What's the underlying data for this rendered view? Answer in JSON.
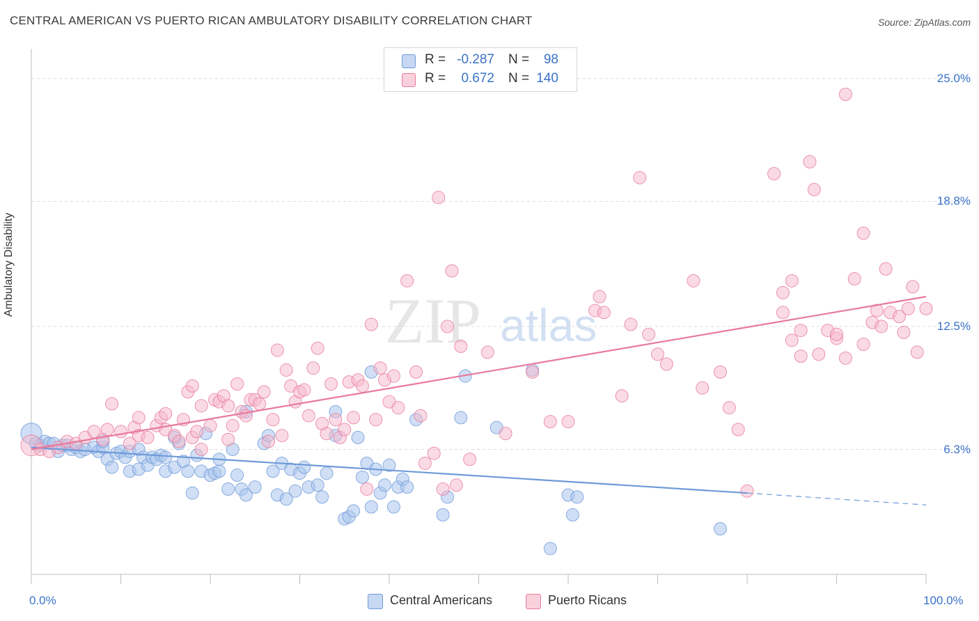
{
  "title": "CENTRAL AMERICAN VS PUERTO RICAN AMBULATORY DISABILITY CORRELATION CHART",
  "source": "Source: ZipAtlas.com",
  "watermark": {
    "zip": "ZIP",
    "atlas": "atlas"
  },
  "stats": [
    {
      "r_label": "R =",
      "r_value": "-0.287",
      "n_label": "N =",
      "n_value": "98",
      "color": "#a9c4ec"
    },
    {
      "r_label": "R =",
      "r_value": "0.672",
      "n_label": "N =",
      "n_value": "140",
      "color": "#f5b8cb"
    }
  ],
  "legend": [
    {
      "label": "Central Americans",
      "color": "#a9c4ec"
    },
    {
      "label": "Puerto Ricans",
      "color": "#f5b8cb"
    }
  ],
  "chart_data": {
    "type": "scatter",
    "title": "CENTRAL AMERICAN VS PUERTO RICAN AMBULATORY DISABILITY CORRELATION CHART",
    "xlabel": "",
    "ylabel": "Ambulatory Disability",
    "xlim": [
      0,
      100
    ],
    "ylim": [
      0,
      26.5
    ],
    "x_tick_labels": [
      "0.0%",
      "100.0%"
    ],
    "y_ticks": [
      {
        "value": 6.3,
        "label": "6.3%"
      },
      {
        "value": 12.5,
        "label": "12.5%"
      },
      {
        "value": 18.8,
        "label": "18.8%"
      },
      {
        "value": 25.0,
        "label": "25.0%"
      }
    ],
    "series": [
      {
        "name": "Central Americans",
        "color": "#6f9ad8",
        "fill": "#a9c4ec",
        "trend": {
          "x0": 0,
          "y0": 6.4,
          "x1": 80,
          "y1": 4.1,
          "dash_to_x": 100,
          "dash_to_y": 3.5
        },
        "points": [
          [
            0,
            7.1
          ],
          [
            0.5,
            6.6
          ],
          [
            1,
            6.5
          ],
          [
            1.5,
            6.7
          ],
          [
            2,
            6.6
          ],
          [
            2.5,
            6.6
          ],
          [
            3,
            6.2
          ],
          [
            3.5,
            6.5
          ],
          [
            4,
            6.5
          ],
          [
            4.5,
            6.3
          ],
          [
            5,
            6.4
          ],
          [
            5.5,
            6.2
          ],
          [
            6,
            6.3
          ],
          [
            7,
            6.4
          ],
          [
            7.5,
            6.2
          ],
          [
            8,
            6.4
          ],
          [
            8,
            6.7
          ],
          [
            8.5,
            5.8
          ],
          [
            9,
            5.4
          ],
          [
            9.5,
            6.1
          ],
          [
            10,
            6.2
          ],
          [
            10.5,
            5.9
          ],
          [
            11,
            6.2
          ],
          [
            11,
            5.2
          ],
          [
            12,
            6.3
          ],
          [
            12,
            5.3
          ],
          [
            12.5,
            5.9
          ],
          [
            13,
            5.5
          ],
          [
            13.5,
            5.9
          ],
          [
            14,
            5.8
          ],
          [
            14.5,
            6.0
          ],
          [
            15,
            5.2
          ],
          [
            15,
            5.9
          ],
          [
            16,
            5.4
          ],
          [
            16.5,
            6.6
          ],
          [
            16,
            6.9
          ],
          [
            17,
            5.7
          ],
          [
            17.5,
            5.2
          ],
          [
            18,
            4.1
          ],
          [
            18.5,
            6.0
          ],
          [
            19,
            5.2
          ],
          [
            19.5,
            7.1
          ],
          [
            20,
            5.0
          ],
          [
            20.5,
            5.1
          ],
          [
            21,
            5.2
          ],
          [
            21,
            5.8
          ],
          [
            22,
            4.3
          ],
          [
            22.5,
            6.3
          ],
          [
            23,
            5.0
          ],
          [
            23.5,
            4.3
          ],
          [
            24,
            4.0
          ],
          [
            24,
            8.2
          ],
          [
            25,
            4.4
          ],
          [
            26,
            6.6
          ],
          [
            26.5,
            7.0
          ],
          [
            27,
            5.2
          ],
          [
            27.5,
            4.0
          ],
          [
            28,
            5.6
          ],
          [
            28.5,
            3.8
          ],
          [
            29,
            5.3
          ],
          [
            29.5,
            4.2
          ],
          [
            30,
            5.1
          ],
          [
            30.5,
            5.4
          ],
          [
            31,
            4.4
          ],
          [
            32,
            4.5
          ],
          [
            32.5,
            3.9
          ],
          [
            33,
            5.1
          ],
          [
            34,
            8.2
          ],
          [
            34,
            7.0
          ],
          [
            35,
            2.8
          ],
          [
            35.5,
            2.9
          ],
          [
            36,
            3.2
          ],
          [
            36.5,
            6.9
          ],
          [
            37,
            4.9
          ],
          [
            37.5,
            5.6
          ],
          [
            38,
            3.4
          ],
          [
            38,
            10.2
          ],
          [
            38.5,
            5.3
          ],
          [
            39,
            4.1
          ],
          [
            39.5,
            4.5
          ],
          [
            40,
            5.5
          ],
          [
            40.5,
            3.4
          ],
          [
            41,
            4.4
          ],
          [
            41.5,
            4.8
          ],
          [
            42,
            4.4
          ],
          [
            43,
            7.8
          ],
          [
            46,
            3.0
          ],
          [
            46.5,
            3.9
          ],
          [
            48,
            7.9
          ],
          [
            48.5,
            10.0
          ],
          [
            52,
            7.4
          ],
          [
            56,
            10.3
          ],
          [
            58,
            1.3
          ],
          [
            60,
            4.0
          ],
          [
            60.5,
            3.0
          ],
          [
            61,
            3.9
          ],
          [
            77,
            2.3
          ]
        ]
      },
      {
        "name": "Puerto Ricans",
        "color": "#e8799b",
        "fill": "#f5b8cb",
        "trend": {
          "x0": 0,
          "y0": 6.3,
          "x1": 100,
          "y1": 14.0
        },
        "points": [
          [
            0,
            6.5
          ],
          [
            1,
            6.3
          ],
          [
            2,
            6.2
          ],
          [
            3,
            6.4
          ],
          [
            4,
            6.7
          ],
          [
            5,
            6.6
          ],
          [
            6,
            6.9
          ],
          [
            7,
            7.2
          ],
          [
            8,
            6.8
          ],
          [
            8.5,
            7.3
          ],
          [
            9,
            8.6
          ],
          [
            10,
            7.2
          ],
          [
            11,
            6.6
          ],
          [
            11.5,
            7.4
          ],
          [
            12,
            7.0
          ],
          [
            12,
            7.9
          ],
          [
            13,
            6.9
          ],
          [
            14,
            7.5
          ],
          [
            14.5,
            7.9
          ],
          [
            15,
            8.1
          ],
          [
            15,
            7.3
          ],
          [
            16,
            7.0
          ],
          [
            16.5,
            6.7
          ],
          [
            17,
            7.8
          ],
          [
            17.5,
            9.2
          ],
          [
            18,
            9.5
          ],
          [
            18,
            6.9
          ],
          [
            18.5,
            7.2
          ],
          [
            19,
            8.5
          ],
          [
            19,
            6.3
          ],
          [
            20,
            7.5
          ],
          [
            20.5,
            8.8
          ],
          [
            21,
            8.7
          ],
          [
            21.5,
            9.0
          ],
          [
            22,
            8.5
          ],
          [
            22,
            6.8
          ],
          [
            22.5,
            7.5
          ],
          [
            23,
            9.6
          ],
          [
            23.5,
            8.2
          ],
          [
            24,
            8.0
          ],
          [
            24.5,
            8.8
          ],
          [
            25,
            8.8
          ],
          [
            25.5,
            8.6
          ],
          [
            26,
            9.2
          ],
          [
            26.5,
            6.7
          ],
          [
            27,
            7.8
          ],
          [
            27.5,
            11.3
          ],
          [
            28,
            7.0
          ],
          [
            28.5,
            10.3
          ],
          [
            29,
            9.5
          ],
          [
            29.5,
            8.7
          ],
          [
            30,
            9.2
          ],
          [
            30.5,
            9.3
          ],
          [
            31,
            8.0
          ],
          [
            31.5,
            10.4
          ],
          [
            32,
            11.4
          ],
          [
            32.5,
            7.6
          ],
          [
            33,
            7.1
          ],
          [
            33.5,
            9.6
          ],
          [
            34,
            7.8
          ],
          [
            34.5,
            6.9
          ],
          [
            35,
            7.3
          ],
          [
            35.5,
            9.7
          ],
          [
            36,
            7.9
          ],
          [
            36.5,
            9.8
          ],
          [
            37,
            9.5
          ],
          [
            37.5,
            4.3
          ],
          [
            38,
            12.6
          ],
          [
            38.5,
            7.8
          ],
          [
            39,
            10.4
          ],
          [
            39.5,
            9.8
          ],
          [
            40,
            8.7
          ],
          [
            40.5,
            10.0
          ],
          [
            41,
            8.4
          ],
          [
            42,
            14.8
          ],
          [
            43,
            10.2
          ],
          [
            43.5,
            8.0
          ],
          [
            44,
            5.6
          ],
          [
            45,
            6.1
          ],
          [
            45.5,
            19.0
          ],
          [
            46,
            4.3
          ],
          [
            46.5,
            12.5
          ],
          [
            47,
            15.3
          ],
          [
            47.5,
            4.5
          ],
          [
            48,
            11.5
          ],
          [
            49,
            5.8
          ],
          [
            51,
            11.2
          ],
          [
            53,
            7.1
          ],
          [
            56,
            10.2
          ],
          [
            58,
            7.7
          ],
          [
            60,
            7.7
          ],
          [
            63,
            13.3
          ],
          [
            63.5,
            14.0
          ],
          [
            64,
            13.2
          ],
          [
            66,
            9.0
          ],
          [
            67,
            12.6
          ],
          [
            68,
            20.0
          ],
          [
            69,
            12.1
          ],
          [
            70,
            11.1
          ],
          [
            71,
            10.6
          ],
          [
            74,
            14.8
          ],
          [
            75,
            9.4
          ],
          [
            77,
            10.2
          ],
          [
            78,
            8.4
          ],
          [
            79,
            7.3
          ],
          [
            80,
            4.2
          ],
          [
            83,
            20.2
          ],
          [
            84,
            13.2
          ],
          [
            84,
            14.2
          ],
          [
            85,
            11.8
          ],
          [
            85,
            14.8
          ],
          [
            86,
            11.0
          ],
          [
            86,
            12.3
          ],
          [
            87,
            20.8
          ],
          [
            87.5,
            19.4
          ],
          [
            88,
            11.1
          ],
          [
            89,
            12.3
          ],
          [
            90,
            11.9
          ],
          [
            90,
            12.1
          ],
          [
            91,
            24.2
          ],
          [
            91,
            10.9
          ],
          [
            92,
            14.9
          ],
          [
            93,
            17.2
          ],
          [
            93,
            11.6
          ],
          [
            94,
            12.7
          ],
          [
            94.5,
            13.3
          ],
          [
            95,
            12.5
          ],
          [
            95.5,
            15.4
          ],
          [
            96,
            13.2
          ],
          [
            97,
            13.0
          ],
          [
            97.5,
            12.2
          ],
          [
            98,
            13.4
          ],
          [
            98.5,
            14.5
          ],
          [
            99,
            11.2
          ],
          [
            100,
            13.4
          ]
        ]
      }
    ]
  }
}
